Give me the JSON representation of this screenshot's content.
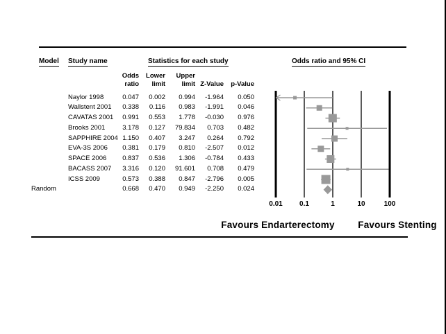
{
  "headers": {
    "model": "Model",
    "study_name": "Study name",
    "statistics": "Statistics for each study",
    "plot": "Odds ratio and 95% CI"
  },
  "subheaders": {
    "odds": "Odds\nratio",
    "lower": "Lower\nlimit",
    "upper": "Upper\nlimit",
    "z": "Z-Value",
    "p": "p-Value"
  },
  "footer": {
    "left": "Favours Endarterectomy",
    "right": "Favours Stenting"
  },
  "chart_data": {
    "type": "forest",
    "scale": "log10",
    "effect_measure": "Odds ratio",
    "x_ticks": [
      "0.01",
      "0.1",
      "1",
      "10",
      "100"
    ],
    "x_range": [
      0.01,
      100
    ],
    "grid": false,
    "colors": {
      "marker": "#999999",
      "ci_line": "#999999",
      "axis": "#000000",
      "text": "#000000",
      "background": "#ffffff"
    },
    "studies": [
      {
        "name": "Naylor 1998",
        "odds_ratio": "0.047",
        "lower": "0.002",
        "upper": "0.994",
        "z_value": "-1.964",
        "p_value": "0.050",
        "marker_size": 5
      },
      {
        "name": "Wallstent 2001",
        "odds_ratio": "0.338",
        "lower": "0.116",
        "upper": "0.983",
        "z_value": "-1.991",
        "p_value": "0.046",
        "marker_size": 8
      },
      {
        "name": "CAVATAS 2001",
        "odds_ratio": "0.991",
        "lower": "0.553",
        "upper": "1.778",
        "z_value": "-0.030",
        "p_value": "0.976",
        "marker_size": 12
      },
      {
        "name": "Brooks 2001",
        "odds_ratio": "3.178",
        "lower": "0.127",
        "upper": "79.834",
        "z_value": "0.703",
        "p_value": "0.482",
        "marker_size": 4
      },
      {
        "name": "SAPPHIRE 2004",
        "odds_ratio": "1.150",
        "lower": "0.407",
        "upper": "3.247",
        "z_value": "0.264",
        "p_value": "0.792",
        "marker_size": 9
      },
      {
        "name": "EVA-3S 2006",
        "odds_ratio": "0.381",
        "lower": "0.179",
        "upper": "0.810",
        "z_value": "-2.507",
        "p_value": "0.012",
        "marker_size": 9
      },
      {
        "name": "SPACE 2006",
        "odds_ratio": "0.837",
        "lower": "0.536",
        "upper": "1.306",
        "z_value": "-0.784",
        "p_value": "0.433",
        "marker_size": 11
      },
      {
        "name": "BACASS 2007",
        "odds_ratio": "3.316",
        "lower": "0.120",
        "upper": "91.601",
        "z_value": "0.708",
        "p_value": "0.479",
        "marker_size": 4
      },
      {
        "name": "ICSS 2009",
        "odds_ratio": "0.573",
        "lower": "0.388",
        "upper": "0.847",
        "z_value": "-2.796",
        "p_value": "0.005",
        "marker_size": 13
      }
    ],
    "summary": {
      "model_label": "Random",
      "odds_ratio": "0.668",
      "lower": "0.470",
      "upper": "0.949",
      "z_value": "-2.250",
      "p_value": "0.024"
    }
  }
}
